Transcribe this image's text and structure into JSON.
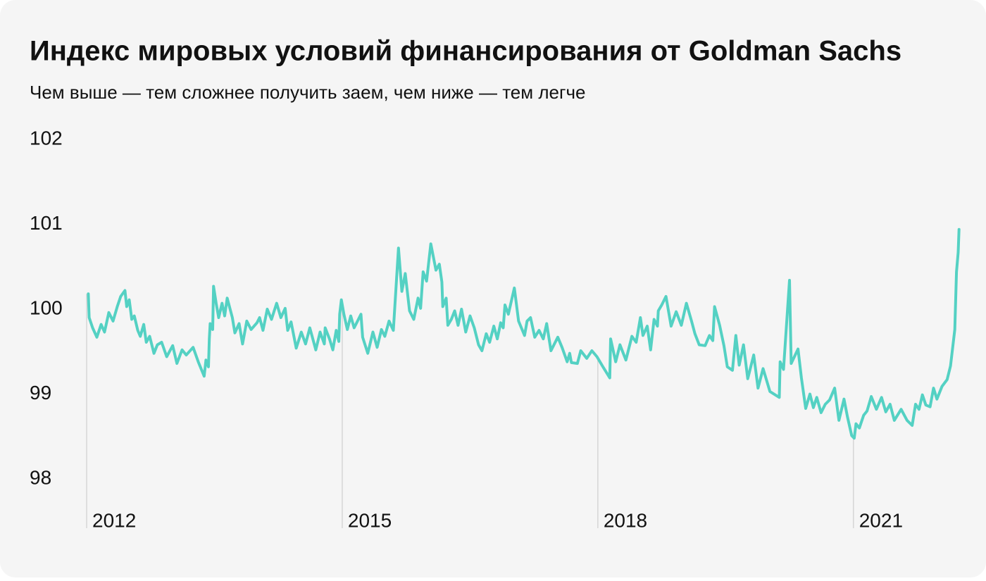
{
  "chart_data": {
    "type": "line",
    "title": "Индекс мировых условий финансирования от Goldman Sachs",
    "subtitle": "Чем выше — тем сложнее получить заем, чем ниже — тем легче",
    "color": "#54d1c3",
    "xlim": [
      2012,
      2022.3
    ],
    "xticks": [
      2012,
      2015,
      2018,
      2021
    ],
    "ylim": [
      98,
      102
    ],
    "yticks": [
      98,
      99,
      100,
      101,
      102
    ],
    "x": [
      2012.02,
      2012.03,
      2012.07,
      2012.12,
      2012.17,
      2012.21,
      2012.26,
      2012.31,
      2012.36,
      2012.4,
      2012.45,
      2012.47,
      2012.5,
      2012.53,
      2012.56,
      2012.6,
      2012.63,
      2012.67,
      2012.7,
      2012.74,
      2012.79,
      2012.83,
      2012.88,
      2012.94,
      2013.01,
      2013.06,
      2013.12,
      2013.17,
      2013.25,
      2013.31,
      2013.38,
      2013.4,
      2013.43,
      2013.44,
      2013.45,
      2013.48,
      2013.49,
      2013.52,
      2013.55,
      2013.59,
      2013.62,
      2013.65,
      2013.71,
      2013.74,
      2013.79,
      2013.83,
      2013.88,
      2013.93,
      2014.0,
      2014.03,
      2014.07,
      2014.12,
      2014.17,
      2014.23,
      2014.28,
      2014.33,
      2014.36,
      2014.4,
      2014.46,
      2014.52,
      2014.57,
      2014.62,
      2014.69,
      2014.74,
      2014.79,
      2014.8,
      2014.85,
      2014.89,
      2014.93,
      2014.96,
      2014.97,
      2014.99,
      2015.02,
      2015.06,
      2015.1,
      2015.14,
      2015.18,
      2015.22,
      2015.24,
      2015.3,
      2015.36,
      2015.41,
      2015.46,
      2015.5,
      2015.55,
      2015.6,
      2015.66,
      2015.7,
      2015.74,
      2015.79,
      2015.84,
      2015.89,
      2015.92,
      2015.95,
      2015.99,
      2016.04,
      2016.1,
      2016.14,
      2016.17,
      2016.18,
      2016.22,
      2016.24,
      2016.28,
      2016.32,
      2016.36,
      2016.4,
      2016.45,
      2016.5,
      2016.55,
      2016.6,
      2016.64,
      2016.69,
      2016.73,
      2016.78,
      2016.82,
      2016.86,
      2016.89,
      2016.91,
      2016.95,
      2017.02,
      2017.07,
      2017.14,
      2017.17,
      2017.21,
      2017.26,
      2017.31,
      2017.36,
      2017.4,
      2017.45,
      2017.53,
      2017.58,
      2017.64,
      2017.67,
      2017.69,
      2017.76,
      2017.8,
      2017.87,
      2017.93,
      2017.99,
      2018.06,
      2018.14,
      2018.15,
      2018.21,
      2018.26,
      2018.33,
      2018.4,
      2018.45,
      2018.5,
      2018.53,
      2018.58,
      2018.62,
      2018.66,
      2018.7,
      2018.71,
      2018.75,
      2018.8,
      2018.86,
      2018.92,
      2018.98,
      2019.04,
      2019.1,
      2019.14,
      2019.19,
      2019.26,
      2019.31,
      2019.35,
      2019.37,
      2019.43,
      2019.48,
      2019.52,
      2019.58,
      2019.62,
      2019.66,
      2019.71,
      2019.76,
      2019.83,
      2019.88,
      2019.94,
      2020.02,
      2020.13,
      2020.14,
      2020.18,
      2020.25,
      2020.27,
      2020.35,
      2020.39,
      2020.44,
      2020.49,
      2020.53,
      2020.57,
      2020.62,
      2020.67,
      2020.72,
      2020.78,
      2020.83,
      2020.89,
      2020.93,
      2020.98,
      2021.01,
      2021.03,
      2021.07,
      2021.12,
      2021.16,
      2021.21,
      2021.27,
      2021.33,
      2021.38,
      2021.43,
      2021.48,
      2021.56,
      2021.63,
      2021.69,
      2021.73,
      2021.77,
      2021.81,
      2021.85,
      2021.9,
      2021.94,
      2021.98,
      2022.04,
      2022.1,
      2022.14,
      2022.19,
      2022.21,
      2022.23,
      2022.24
    ],
    "values": [
      100.18,
      99.9,
      99.78,
      99.67,
      99.82,
      99.73,
      99.96,
      99.86,
      100.03,
      100.15,
      100.22,
      100.03,
      100.11,
      99.88,
      99.92,
      99.75,
      99.68,
      99.82,
      99.61,
      99.68,
      99.48,
      99.58,
      99.61,
      99.44,
      99.57,
      99.36,
      99.52,
      99.46,
      99.55,
      99.38,
      99.21,
      99.4,
      99.32,
      99.65,
      99.83,
      99.76,
      100.27,
      100.07,
      99.9,
      100.07,
      99.92,
      100.13,
      99.9,
      99.72,
      99.83,
      99.59,
      99.86,
      99.76,
      99.84,
      99.9,
      99.75,
      100.0,
      99.88,
      100.07,
      99.9,
      100.01,
      99.75,
      99.85,
      99.54,
      99.73,
      99.59,
      99.78,
      99.52,
      99.73,
      99.59,
      99.78,
      99.65,
      99.52,
      99.75,
      99.62,
      99.94,
      100.11,
      99.94,
      99.76,
      99.92,
      99.78,
      99.86,
      99.94,
      99.67,
      99.48,
      99.73,
      99.55,
      99.76,
      99.68,
      99.86,
      99.75,
      100.72,
      100.21,
      100.42,
      99.98,
      99.88,
      100.13,
      100.01,
      100.44,
      100.33,
      100.77,
      100.46,
      100.53,
      100.32,
      100.03,
      100.13,
      99.81,
      99.88,
      99.98,
      99.81,
      100.0,
      99.73,
      99.92,
      99.78,
      99.58,
      99.51,
      99.71,
      99.61,
      99.8,
      99.65,
      99.84,
      99.78,
      100.05,
      99.94,
      100.25,
      99.86,
      99.69,
      99.86,
      99.9,
      99.67,
      99.75,
      99.65,
      99.83,
      99.51,
      99.67,
      99.55,
      99.38,
      99.48,
      99.37,
      99.36,
      99.51,
      99.42,
      99.51,
      99.44,
      99.32,
      99.19,
      99.65,
      99.38,
      99.58,
      99.4,
      99.68,
      99.61,
      99.9,
      99.69,
      99.8,
      99.52,
      99.88,
      99.8,
      99.98,
      100.05,
      100.15,
      99.8,
      99.97,
      99.81,
      100.07,
      99.86,
      99.71,
      99.58,
      99.57,
      99.69,
      99.63,
      100.03,
      99.81,
      99.57,
      99.32,
      99.28,
      99.69,
      99.34,
      99.58,
      99.18,
      99.46,
      99.07,
      99.3,
      99.03,
      98.96,
      99.38,
      99.29,
      100.34,
      99.36,
      99.53,
      99.19,
      98.83,
      99.0,
      98.84,
      98.96,
      98.78,
      98.88,
      98.93,
      99.07,
      98.69,
      98.94,
      98.73,
      98.51,
      98.48,
      98.65,
      98.6,
      98.75,
      98.8,
      98.97,
      98.82,
      98.96,
      98.79,
      98.88,
      98.69,
      98.82,
      98.69,
      98.63,
      98.88,
      98.82,
      98.99,
      98.87,
      98.85,
      99.07,
      98.94,
      99.09,
      99.17,
      99.33,
      99.76,
      100.44,
      100.67,
      100.94
    ]
  }
}
